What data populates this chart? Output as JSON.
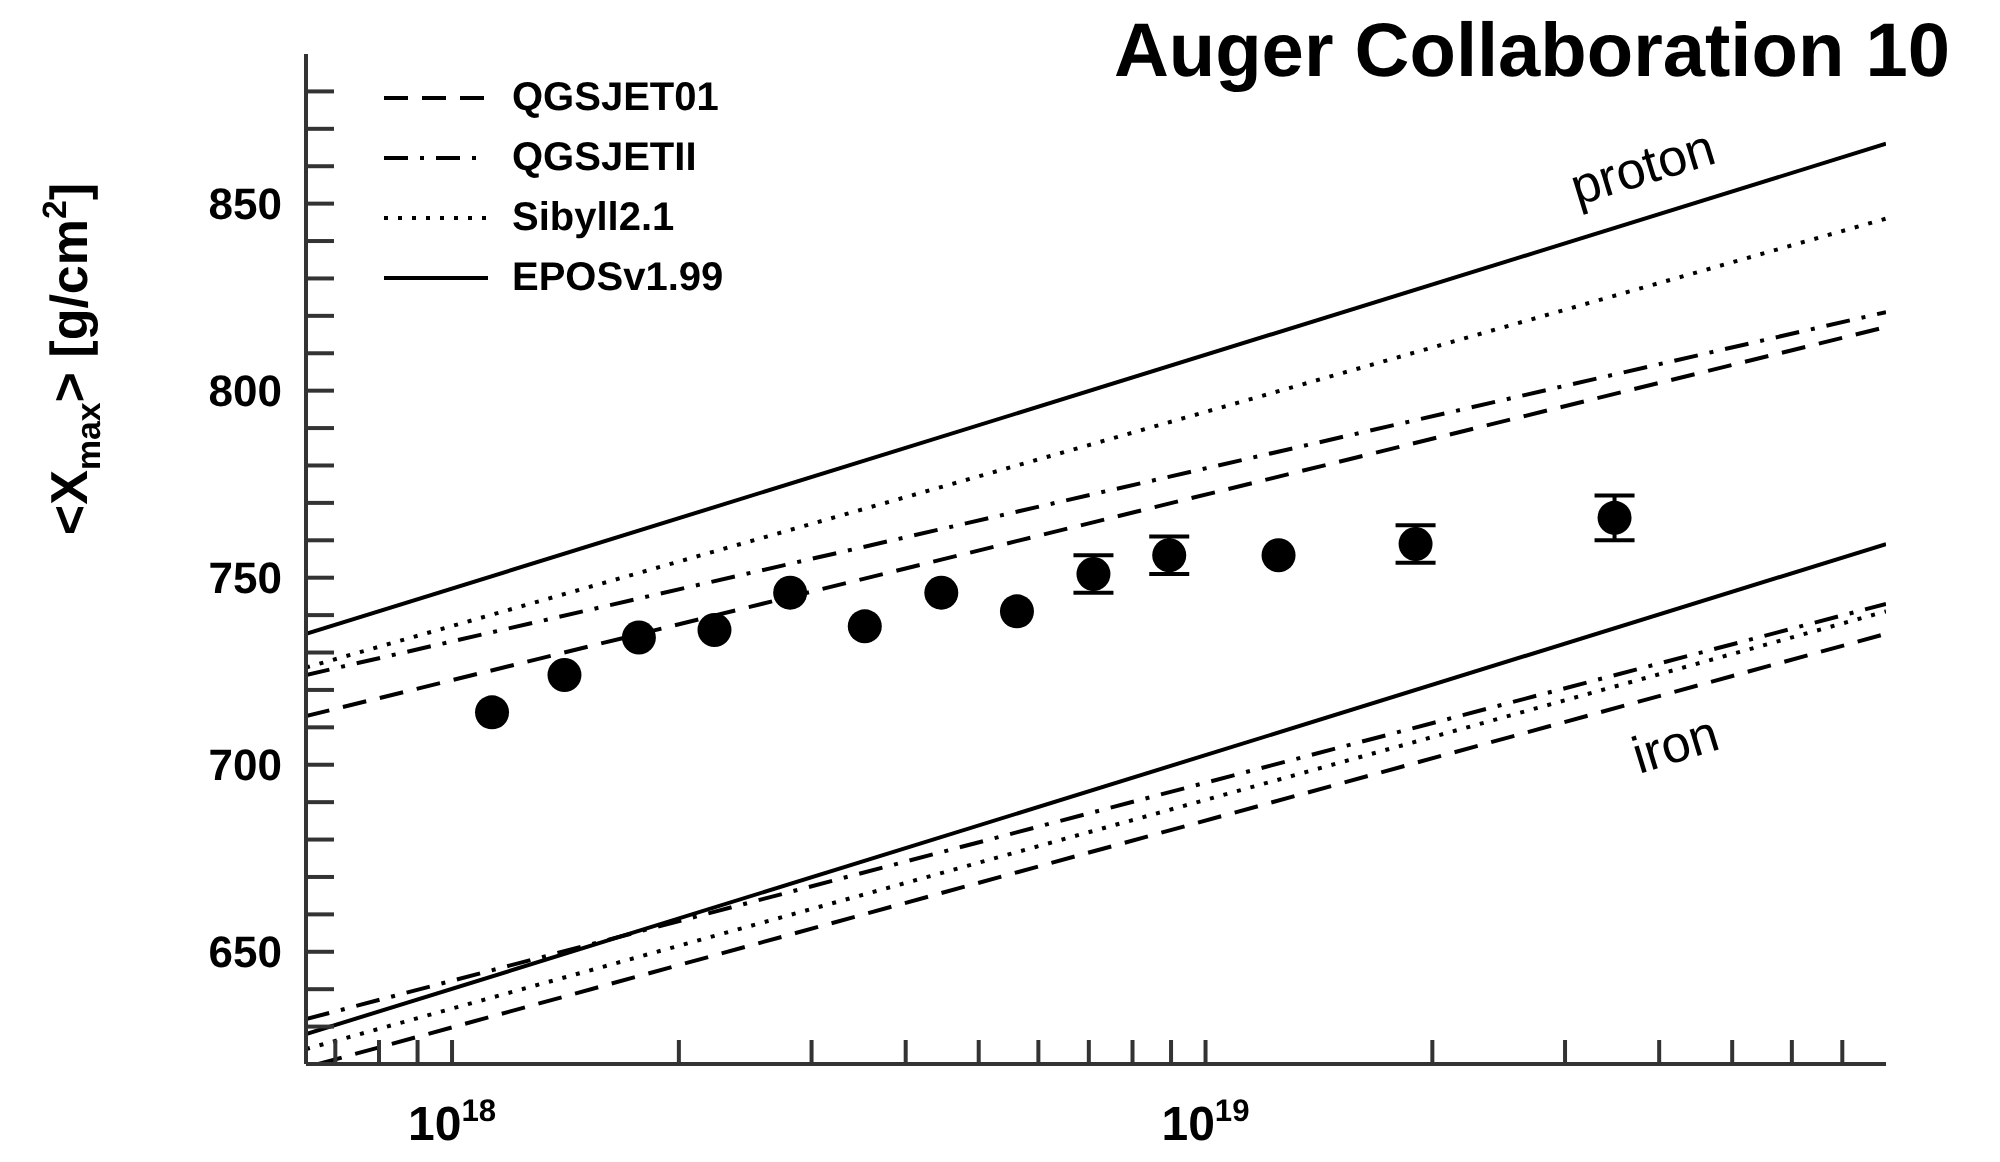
{
  "chart_data": {
    "type": "line",
    "title": "Auger Collaboration 10",
    "ylabel": "<X$_{max}$> [g/cm$^{2}$]",
    "xlim": [
      6.4e+17,
      8e+19
    ],
    "ylim": [
      620,
      890
    ],
    "log": "x",
    "legend": "top left",
    "xticks": [
      {
        "value": 7e+17,
        "label": null
      },
      {
        "value": 8e+17,
        "label": null
      },
      {
        "value": 9e+17,
        "label": null
      },
      {
        "value": 1e+18,
        "label": "10$^{18}$"
      },
      {
        "value": 2e+18,
        "label": null
      },
      {
        "value": 3e+18,
        "label": null
      },
      {
        "value": 4e+18,
        "label": null
      },
      {
        "value": 5e+18,
        "label": null
      },
      {
        "value": 6e+18,
        "label": null
      },
      {
        "value": 7e+18,
        "label": null
      },
      {
        "value": 8e+18,
        "label": null
      },
      {
        "value": 9e+18,
        "label": null
      },
      {
        "value": 1e+19,
        "label": "10$^{19}$"
      },
      {
        "value": 2e+19,
        "label": null
      },
      {
        "value": 3e+19,
        "label": null
      },
      {
        "value": 4e+19,
        "label": null
      },
      {
        "value": 5e+19,
        "label": null
      },
      {
        "value": 6e+19,
        "label": null
      },
      {
        "value": 7e+19,
        "label": null
      }
    ],
    "yticks": [
      {
        "value": 630,
        "label": null
      },
      {
        "value": 640,
        "label": null
      },
      650,
      {
        "value": 660,
        "label": null
      },
      {
        "value": 670,
        "label": null
      },
      {
        "value": 680,
        "label": null
      },
      {
        "value": 690,
        "label": null
      },
      700,
      {
        "value": 710,
        "label": null
      },
      {
        "value": 720,
        "label": null
      },
      {
        "value": 730,
        "label": null
      },
      {
        "value": 740,
        "label": null
      },
      750,
      {
        "value": 760,
        "label": null
      },
      {
        "value": 770,
        "label": null
      },
      {
        "value": 780,
        "label": null
      },
      {
        "value": 790,
        "label": null
      },
      800,
      {
        "value": 810,
        "label": null
      },
      {
        "value": 820,
        "label": null
      },
      {
        "value": 830,
        "label": null
      },
      {
        "value": 840,
        "label": null
      },
      850,
      {
        "value": 860,
        "label": null
      },
      {
        "value": 870,
        "label": null
      },
      {
        "value": 880,
        "label": null
      }
    ],
    "series": [
      {
        "name": "QGSJET01",
        "type": "line",
        "line_style": "dashed",
        "color": "#000000",
        "x": [
          6.4e+17,
          8e+19
        ],
        "values": [
          713,
          817
        ]
      },
      {
        "name": "QGSJETII",
        "type": "line",
        "line_style": "dashdot",
        "color": "#000000",
        "x": [
          6.4e+17,
          8e+19
        ],
        "values": [
          724,
          821
        ]
      },
      {
        "name": "Sibyll2.1",
        "type": "line",
        "line_style": "dotted",
        "color": "#000000",
        "x": [
          6.4e+17,
          8e+19
        ],
        "values": [
          726,
          846
        ]
      },
      {
        "name": "EPOSv1.99",
        "type": "line",
        "line_style": "solid",
        "color": "#000000",
        "x": [
          6.4e+17,
          8e+19
        ],
        "values": [
          735,
          866
        ]
      },
      {
        "type": "line",
        "line_style": "dashed",
        "color": "#000000",
        "x": [
          6.65e+17,
          8e+19
        ],
        "values": [
          620,
          735
        ]
      },
      {
        "type": "line",
        "line_style": "dashdot",
        "color": "#000000",
        "x": [
          6.4e+17,
          8e+19
        ],
        "values": [
          632,
          743
        ]
      },
      {
        "type": "line",
        "line_style": "dotted",
        "color": "#000000",
        "x": [
          6.4e+17,
          8e+19
        ],
        "values": [
          624,
          741
        ]
      },
      {
        "type": "line",
        "line_style": "solid",
        "color": "#000000",
        "x": [
          6.4e+17,
          8e+19
        ],
        "values": [
          628,
          759
        ]
      },
      {
        "type": "scatter",
        "marker": "circle",
        "color": "#000000",
        "x": [
          1.13e+18,
          1.41e+18,
          1.77e+18,
          2.23e+18,
          2.81e+18,
          3.53e+18,
          4.46e+18,
          5.62e+18,
          7.1e+18,
          8.95e+18,
          1.25e+19,
          1.9e+19,
          3.49e+19
        ],
        "values": [
          714,
          724,
          734,
          736,
          746,
          737,
          746,
          741,
          751,
          756,
          756,
          759,
          766
        ],
        "errors": [
          null,
          null,
          null,
          null,
          null,
          null,
          null,
          null,
          5,
          5,
          null,
          5,
          6
        ]
      }
    ],
    "annotations": [
      {
        "text": "proton",
        "x": 3.8e+19,
        "y": 846
      },
      {
        "text": "iron",
        "x": 4.2e+19,
        "y": 720
      }
    ]
  }
}
